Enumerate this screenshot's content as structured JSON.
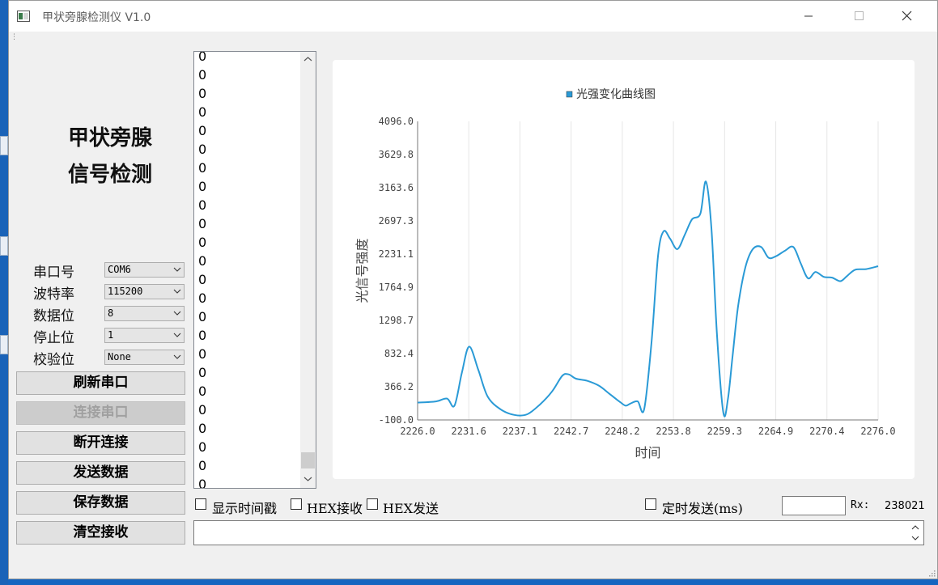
{
  "window": {
    "title": "甲状旁腺检测仪 V1.0"
  },
  "brand": {
    "line1": "甲状旁腺",
    "line2": "信号检测"
  },
  "settings": {
    "port": {
      "label": "串口号",
      "value": "COM6"
    },
    "baud": {
      "label": "波特率",
      "value": "115200"
    },
    "databits": {
      "label": "数据位",
      "value": "8"
    },
    "stopbits": {
      "label": "停止位",
      "value": "1"
    },
    "parity": {
      "label": "校验位",
      "value": "None"
    }
  },
  "buttons": {
    "refresh": "刷新串口",
    "connect": "连接串口",
    "disconnect": "断开连接",
    "send": "发送数据",
    "save": "保存数据",
    "clear": "清空接收"
  },
  "receive": {
    "lines": [
      "0",
      "0",
      "0",
      "0",
      "0",
      "0",
      "0",
      "0",
      "0",
      "0",
      "0",
      "0",
      "0",
      "0",
      "0",
      "0",
      "0",
      "0",
      "0",
      "0",
      "0",
      "0",
      "0",
      "0"
    ]
  },
  "options": {
    "show_timestamp": "显示时间戳",
    "hex_receive": "HEX接收",
    "hex_send": "HEX发送",
    "timed_send": "定时发送(ms)"
  },
  "status": {
    "rx_label": "Rx:",
    "rx_value": "238021"
  },
  "colors": {
    "series": "#2a9ad6",
    "grid": "#e6e6e6"
  },
  "chart_data": {
    "type": "line",
    "title": "",
    "legend": [
      "光强变化曲线图"
    ],
    "legend_position": "top-center",
    "xlabel": "时间",
    "ylabel": "光信号强度",
    "xlim": [
      2226.0,
      2276.0
    ],
    "ylim": [
      -100.0,
      4096.0
    ],
    "xticks": [
      "2226.0",
      "2231.6",
      "2237.1",
      "2242.7",
      "2248.2",
      "2253.8",
      "2259.3",
      "2264.9",
      "2270.4",
      "2276.0"
    ],
    "yticks": [
      "4096.0",
      "3629.8",
      "3163.6",
      "2697.3",
      "2231.1",
      "1764.9",
      "1298.7",
      "832.4",
      "366.2",
      "-100.0"
    ],
    "grid": {
      "vertical": true,
      "horizontal": false
    },
    "series": [
      {
        "name": "光强变化曲线图",
        "x": [
          2226.0,
          2228.0,
          2229.2,
          2230.0,
          2230.8,
          2231.6,
          2232.6,
          2233.6,
          2235.0,
          2236.5,
          2237.9,
          2239.3,
          2240.6,
          2241.7,
          2242.4,
          2243.2,
          2244.4,
          2245.7,
          2246.9,
          2248.0,
          2248.6,
          2249.1,
          2249.9,
          2250.6,
          2251.4,
          2252.1,
          2252.7,
          2253.4,
          2254.2,
          2255.0,
          2255.8,
          2256.7,
          2257.3,
          2257.9,
          2258.5,
          2259.2,
          2259.7,
          2260.2,
          2260.8,
          2261.6,
          2262.4,
          2263.3,
          2264.1,
          2264.9,
          2265.9,
          2266.8,
          2267.6,
          2268.4,
          2269.2,
          2270.1,
          2271.0,
          2271.9,
          2272.6,
          2273.5,
          2274.7,
          2276.0
        ],
        "y": [
          144,
          160,
          200,
          100,
          560,
          930,
          600,
          230,
          50,
          -30,
          -20,
          120,
          300,
          520,
          540,
          480,
          450,
          380,
          260,
          150,
          100,
          130,
          160,
          50,
          1000,
          2200,
          2550,
          2450,
          2300,
          2500,
          2720,
          2800,
          3250,
          2600,
          1100,
          0,
          200,
          800,
          1500,
          2050,
          2300,
          2330,
          2180,
          2200,
          2280,
          2330,
          2100,
          1890,
          1980,
          1910,
          1900,
          1850,
          1920,
          2010,
          2020,
          2060
        ]
      }
    ]
  }
}
